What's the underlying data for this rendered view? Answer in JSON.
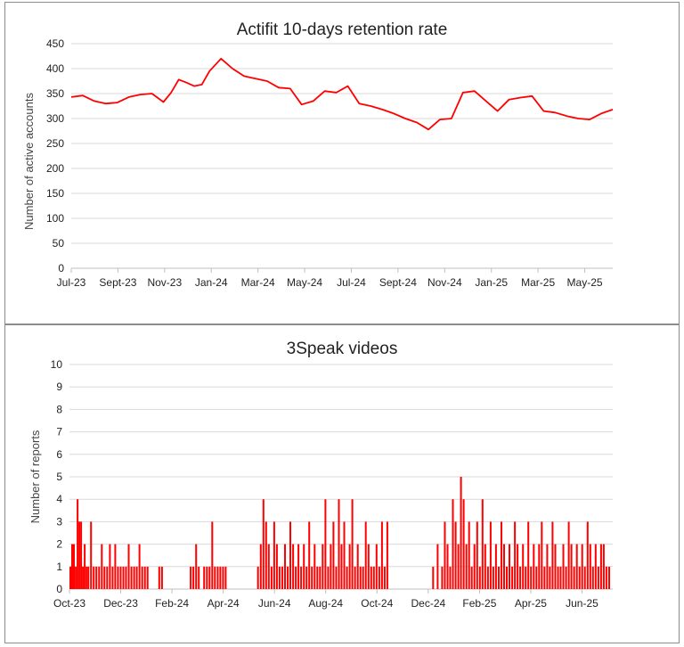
{
  "chart_data": [
    {
      "type": "line",
      "title": "Actifit 10-days retention rate",
      "ylabel": "Number of active accounts",
      "xlabel": "",
      "ylim": [
        0,
        450
      ],
      "yticks": [
        0,
        50,
        100,
        150,
        200,
        250,
        300,
        350,
        400,
        450
      ],
      "xticks": [
        "Jul-23",
        "Sept-23",
        "Nov-23",
        "Jan-24",
        "Mar-24",
        "May-24",
        "Jul-24",
        "Sept-24",
        "Nov-24",
        "Jan-25",
        "Mar-25",
        "May-25"
      ],
      "grid": true,
      "line_color": "#ff0000",
      "series": [
        {
          "x": [
            0,
            15,
            30,
            45,
            60,
            75,
            90,
            105,
            120,
            130,
            140,
            150,
            160,
            170,
            180,
            195,
            210,
            225,
            240,
            255,
            270,
            285,
            300,
            315,
            330,
            345,
            360,
            375,
            390,
            405,
            420,
            435,
            450,
            465,
            480,
            495,
            510,
            525,
            540,
            555,
            570,
            585,
            600,
            615,
            630,
            645,
            660,
            675,
            690,
            705
          ],
          "values": [
            343,
            346,
            335,
            330,
            332,
            343,
            348,
            350,
            333,
            352,
            378,
            372,
            365,
            368,
            395,
            420,
            400,
            385,
            380,
            375,
            362,
            360,
            328,
            335,
            355,
            352,
            365,
            330,
            325,
            318,
            310,
            300,
            292,
            278,
            298,
            300,
            352,
            355,
            335,
            315,
            338,
            342,
            345,
            315,
            312,
            305,
            300,
            298,
            310,
            318
          ]
        }
      ]
    },
    {
      "type": "bar",
      "title": "3Speak videos",
      "ylabel": "Number of reports",
      "xlabel": "",
      "ylim": [
        0,
        10
      ],
      "yticks": [
        0,
        1,
        2,
        3,
        4,
        5,
        6,
        7,
        8,
        9,
        10
      ],
      "xticks": [
        "Oct-23",
        "Dec-23",
        "Feb-24",
        "Apr-24",
        "Jun-24",
        "Aug-24",
        "Oct-24",
        "Dec-24",
        "Feb-25",
        "Apr-25",
        "Jun-25"
      ],
      "grid": true,
      "bar_color": "#ff0000",
      "series": [
        {
          "x": [
            1,
            3,
            5,
            7,
            9,
            11,
            13,
            15,
            17,
            19,
            21,
            24,
            27,
            30,
            33,
            36,
            39,
            42,
            45,
            48,
            51,
            54,
            57,
            60,
            63,
            66,
            69,
            72,
            75,
            78,
            81,
            84,
            87,
            100,
            103,
            135,
            138,
            141,
            144,
            150,
            153,
            156,
            159,
            162,
            165,
            168,
            171,
            174,
            210,
            213,
            216,
            219,
            222,
            225,
            228,
            231,
            234,
            237,
            240,
            243,
            246,
            249,
            252,
            255,
            258,
            261,
            264,
            267,
            270,
            273,
            276,
            279,
            282,
            285,
            288,
            291,
            294,
            297,
            300,
            303,
            306,
            309,
            312,
            315,
            318,
            321,
            324,
            327,
            330,
            333,
            336,
            339,
            342,
            345,
            348,
            351,
            354,
            405,
            410,
            415,
            418,
            421,
            424,
            427,
            430,
            433,
            436,
            439,
            442,
            445,
            448,
            451,
            454,
            457,
            460,
            463,
            466,
            469,
            472,
            475,
            478,
            481,
            484,
            487,
            490,
            493,
            496,
            499,
            502,
            505,
            508,
            511,
            514,
            517,
            520,
            523,
            526,
            529,
            532,
            535,
            538,
            541,
            544,
            547,
            550,
            553,
            556,
            559,
            562,
            565,
            568,
            571,
            574,
            577,
            580,
            583,
            586,
            589,
            592,
            595,
            598,
            601
          ],
          "values": [
            1,
            2,
            2,
            1,
            4,
            3,
            3,
            1,
            2,
            1,
            1,
            3,
            1,
            1,
            1,
            2,
            1,
            1,
            2,
            1,
            2,
            1,
            1,
            1,
            1,
            2,
            1,
            1,
            1,
            2,
            1,
            1,
            1,
            1,
            1,
            1,
            1,
            2,
            1,
            1,
            1,
            1,
            3,
            1,
            1,
            1,
            1,
            1,
            1,
            2,
            4,
            3,
            2,
            1,
            3,
            2,
            1,
            1,
            2,
            1,
            3,
            2,
            1,
            2,
            1,
            2,
            1,
            3,
            1,
            2,
            1,
            1,
            2,
            4,
            1,
            2,
            3,
            1,
            4,
            2,
            3,
            1,
            2,
            4,
            1,
            2,
            1,
            1,
            3,
            2,
            1,
            1,
            2,
            1,
            3,
            1,
            3,
            1,
            2,
            1,
            3,
            2,
            1,
            4,
            3,
            2,
            5,
            4,
            2,
            3,
            1,
            2,
            3,
            1,
            4,
            2,
            1,
            3,
            1,
            2,
            1,
            3,
            2,
            1,
            2,
            1,
            3,
            2,
            1,
            2,
            1,
            3,
            1,
            2,
            1,
            2,
            3,
            1,
            2,
            1,
            3,
            2,
            1,
            1,
            2,
            1,
            3,
            2,
            1,
            2,
            1,
            2,
            1,
            3,
            2,
            1,
            2,
            1,
            2,
            2,
            1,
            1
          ]
        }
      ]
    }
  ]
}
